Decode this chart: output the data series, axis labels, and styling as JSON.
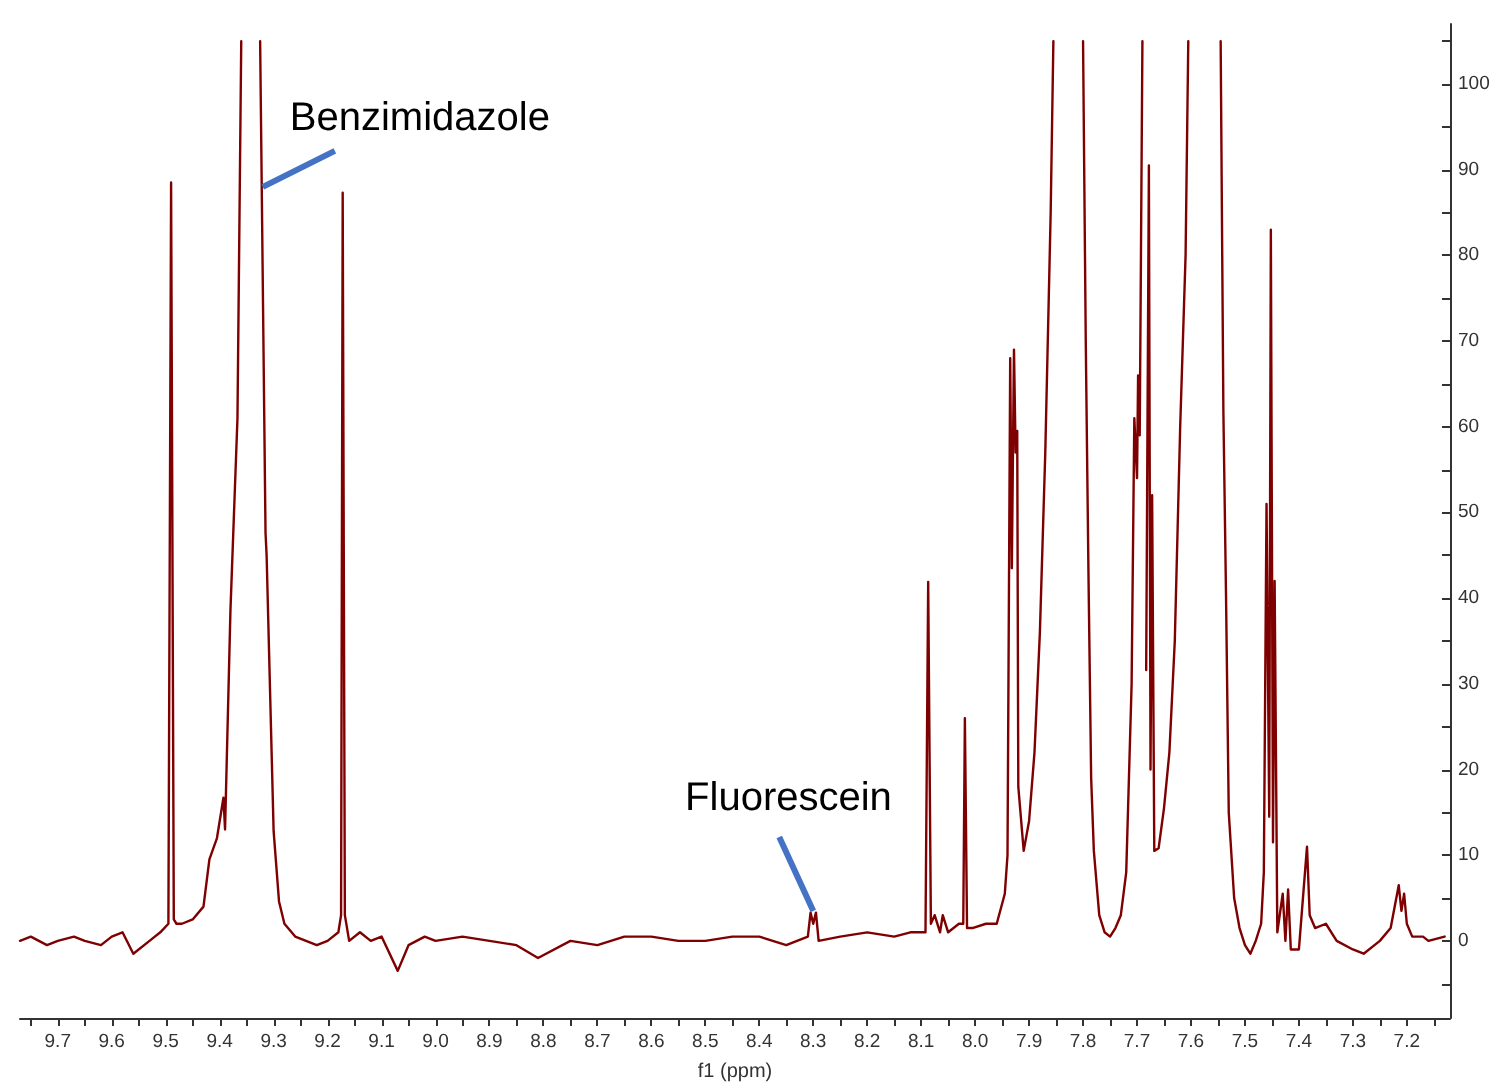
{
  "chart_data": {
    "type": "line",
    "xlabel": "f1 (ppm)",
    "color": "#7f0000",
    "marker": "none",
    "line_style": "solid",
    "grid": false,
    "xlim": [
      9.77,
      7.12
    ],
    "ylim": [
      -9,
      107
    ],
    "xticks": [
      {
        "value": 9.75,
        "label": null
      },
      9.7,
      {
        "value": 9.65,
        "label": null
      },
      9.6,
      {
        "value": 9.55,
        "label": null
      },
      9.5,
      {
        "value": 9.45,
        "label": null
      },
      9.4,
      {
        "value": 9.35,
        "label": null
      },
      9.3,
      {
        "value": 9.25,
        "label": null
      },
      9.2,
      {
        "value": 9.15,
        "label": null
      },
      9.1,
      {
        "value": 9.05,
        "label": null
      },
      {
        "value": 9,
        "label": "9.0"
      },
      {
        "value": 8.95,
        "label": null
      },
      8.9,
      {
        "value": 8.85,
        "label": null
      },
      8.8,
      {
        "value": 8.75,
        "label": null
      },
      8.7,
      {
        "value": 8.65,
        "label": null
      },
      8.6,
      {
        "value": 8.55,
        "label": null
      },
      8.5,
      {
        "value": 8.45,
        "label": null
      },
      8.4,
      {
        "value": 8.35,
        "label": null
      },
      8.3,
      {
        "value": 8.25,
        "label": null
      },
      8.2,
      {
        "value": 8.15,
        "label": null
      },
      8.1,
      {
        "value": 8.05,
        "label": null
      },
      {
        "value": 8,
        "label": "8.0"
      },
      {
        "value": 7.95,
        "label": null
      },
      7.9,
      {
        "value": 7.85,
        "label": null
      },
      7.8,
      {
        "value": 7.75,
        "label": null
      },
      7.7,
      {
        "value": 7.65,
        "label": null
      },
      7.6,
      {
        "value": 7.55,
        "label": null
      },
      7.5,
      {
        "value": 7.45,
        "label": null
      },
      7.4,
      {
        "value": 7.35,
        "label": null
      },
      7.3,
      {
        "value": 7.25,
        "label": null
      },
      7.2,
      {
        "value": 7.15,
        "label": null
      }
    ],
    "yticks": [
      {
        "value": -5,
        "label": null
      },
      0,
      {
        "value": 5,
        "label": null
      },
      10,
      {
        "value": 15,
        "label": null
      },
      20,
      {
        "value": 25,
        "label": null
      },
      30,
      {
        "value": 35,
        "label": null
      },
      40,
      {
        "value": 45,
        "label": null
      },
      50,
      {
        "value": 55,
        "label": null
      },
      60,
      {
        "value": 65,
        "label": null
      },
      70,
      {
        "value": 75,
        "label": null
      },
      80,
      {
        "value": 85,
        "label": null
      },
      90,
      {
        "value": 95,
        "label": null
      },
      100,
      {
        "value": 105,
        "label": null
      }
    ],
    "annotations": [
      {
        "text": "Benzimidazole",
        "x": 9.32,
        "y": 88
      },
      {
        "text": "Fluorescein",
        "x": 8.3,
        "y": 3.5
      }
    ],
    "x": [
      9.77,
      9.75,
      9.72,
      9.7,
      9.67,
      9.65,
      9.62,
      9.6,
      9.58,
      9.56,
      9.53,
      9.51,
      9.495,
      9.49,
      9.485,
      9.48,
      9.47,
      9.45,
      9.43,
      9.419,
      9.405,
      9.393,
      9.39,
      9.38,
      9.367,
      9.36,
      9.345,
      9.325,
      9.315,
      9.313,
      9.3,
      9.29,
      9.28,
      9.26,
      9.24,
      9.22,
      9.2,
      9.18,
      9.175,
      9.172,
      9.168,
      9.16,
      9.14,
      9.12,
      9.1,
      9.07,
      9.05,
      9.02,
      9.0,
      8.95,
      8.9,
      8.85,
      8.81,
      8.75,
      8.7,
      8.65,
      8.6,
      8.55,
      8.5,
      8.45,
      8.4,
      8.35,
      8.31,
      8.305,
      8.3,
      8.295,
      8.29,
      8.25,
      8.2,
      8.15,
      8.12,
      8.1,
      8.092,
      8.087,
      8.082,
      8.075,
      8.065,
      8.06,
      8.05,
      8.03,
      8.022,
      8.019,
      8.015,
      8.005,
      7.98,
      7.96,
      7.945,
      7.94,
      7.935,
      7.932,
      7.928,
      7.925,
      7.922,
      7.92,
      7.91,
      7.9,
      7.89,
      7.88,
      7.87,
      7.86,
      7.855,
      7.83,
      7.8,
      7.795,
      7.79,
      7.785,
      7.78,
      7.77,
      7.76,
      7.75,
      7.74,
      7.73,
      7.72,
      7.71,
      7.705,
      7.7,
      7.698,
      7.695,
      7.69,
      7.686,
      7.683,
      7.678,
      7.675,
      7.672,
      7.668,
      7.66,
      7.65,
      7.64,
      7.63,
      7.62,
      7.61,
      7.605,
      7.575,
      7.545,
      7.54,
      7.535,
      7.53,
      7.52,
      7.51,
      7.5,
      7.49,
      7.48,
      7.47,
      7.465,
      7.46,
      7.455,
      7.452,
      7.448,
      7.445,
      7.44,
      7.43,
      7.425,
      7.42,
      7.415,
      7.4,
      7.385,
      7.38,
      7.37,
      7.35,
      7.33,
      7.3,
      7.28,
      7.25,
      7.23,
      7.215,
      7.21,
      7.205,
      7.2,
      7.19,
      7.17,
      7.16,
      7.13
    ],
    "values": [
      0,
      0.5,
      -0.5,
      0,
      0.5,
      0,
      -0.5,
      0.5,
      1,
      -1.5,
      0,
      1,
      2,
      88.5,
      2.5,
      2,
      2,
      2.5,
      4,
      9.5,
      12,
      16.7,
      13,
      38.6,
      61,
      105,
      null,
      105,
      47.6,
      45,
      12.8,
      4.6,
      2,
      0.5,
      0,
      -0.5,
      0,
      1,
      3,
      87.3,
      3,
      0,
      1,
      0,
      0.5,
      -3.5,
      -0.5,
      0.5,
      0,
      0.5,
      0,
      -0.5,
      -2,
      0,
      -0.5,
      0.5,
      0.5,
      0,
      0,
      0.5,
      0.5,
      -0.5,
      0.5,
      3.3,
      2,
      3.3,
      0,
      0.5,
      1,
      0.5,
      1,
      1,
      1,
      41.9,
      2,
      3,
      1,
      3,
      1,
      2,
      2,
      26,
      1.5,
      1.5,
      2,
      2,
      5.5,
      10,
      68,
      43.5,
      69,
      57,
      59.5,
      18,
      10.5,
      14,
      22,
      36,
      57,
      85,
      105,
      null,
      105,
      70,
      43,
      19,
      10.5,
      3,
      1,
      0.5,
      1.5,
      3,
      8,
      30,
      61,
      54,
      66,
      59,
      105,
      null,
      31.6,
      90.5,
      20,
      52,
      10.5,
      10.8,
      15.5,
      22,
      35,
      60,
      80,
      105,
      null,
      105,
      62,
      40,
      15,
      5,
      1.5,
      -0.5,
      -1.5,
      0,
      2,
      8,
      51,
      14.5,
      83,
      11.5,
      42,
      1,
      5.5,
      0,
      6,
      -1,
      -1,
      11,
      3,
      1.5,
      2,
      0,
      -1,
      -1.5,
      0,
      1.5,
      6.5,
      3.5,
      5.5,
      2,
      0.5,
      0.5,
      0,
      0.5
    ]
  }
}
